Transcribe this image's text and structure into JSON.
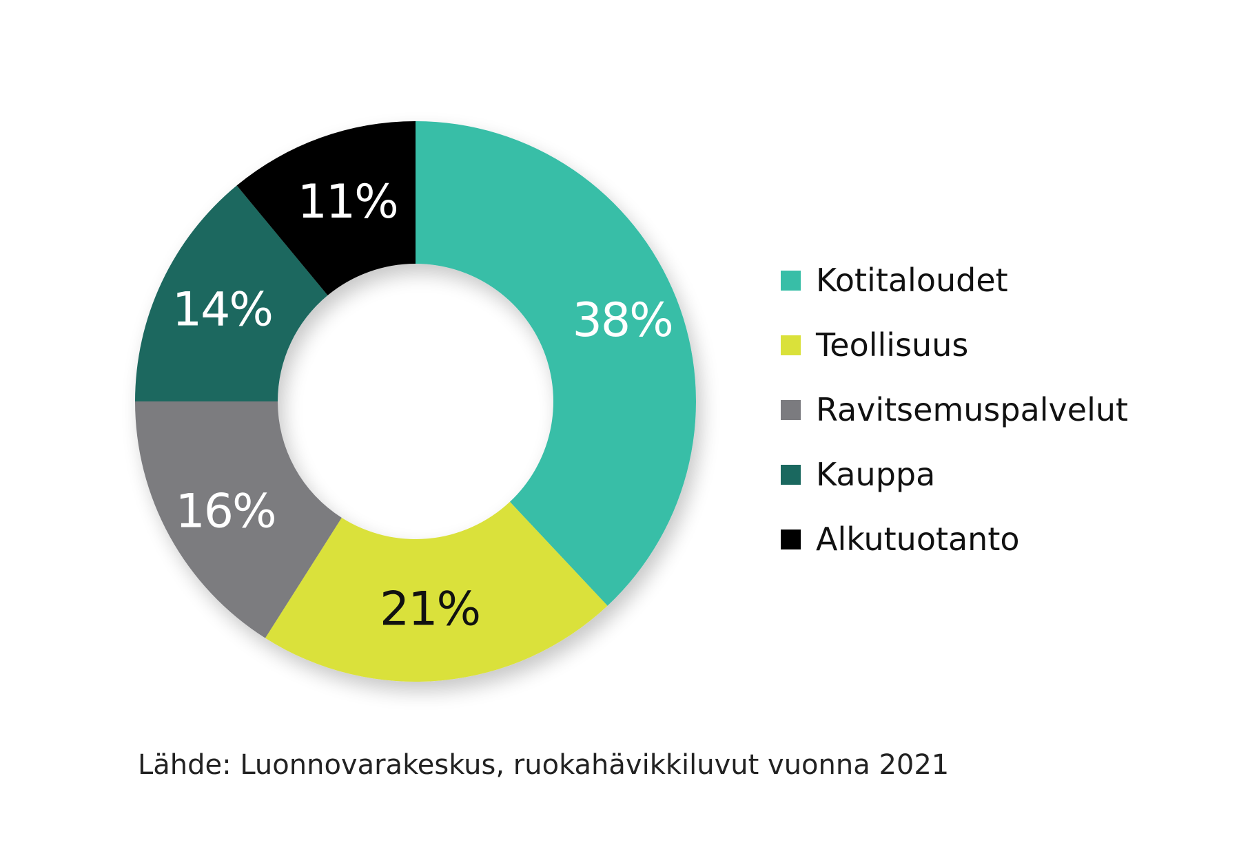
{
  "chart_data": {
    "type": "pie",
    "variant": "donut",
    "categories": [
      "Kotitaloudet",
      "Teollisuus",
      "Ravitsemuspalvelut",
      "Kauppa",
      "Alkutuotanto"
    ],
    "values": [
      38,
      21,
      16,
      14,
      11
    ],
    "value_labels": [
      "38%",
      "21%",
      "16%",
      "14%",
      "11%"
    ],
    "colors": [
      "#38bea7",
      "#dae13a",
      "#7b7b7f",
      "#1a685f",
      "#000000"
    ],
    "label_colors": [
      "#ffffff",
      "#111111",
      "#ffffff",
      "#ffffff",
      "#ffffff"
    ],
    "start_angle": "12 o'clock",
    "direction": "clockwise",
    "legend_position": "right"
  },
  "source_note": "Lähde: Luonnovarakeskus, ruokahävikkiluvut vuonna 2021"
}
